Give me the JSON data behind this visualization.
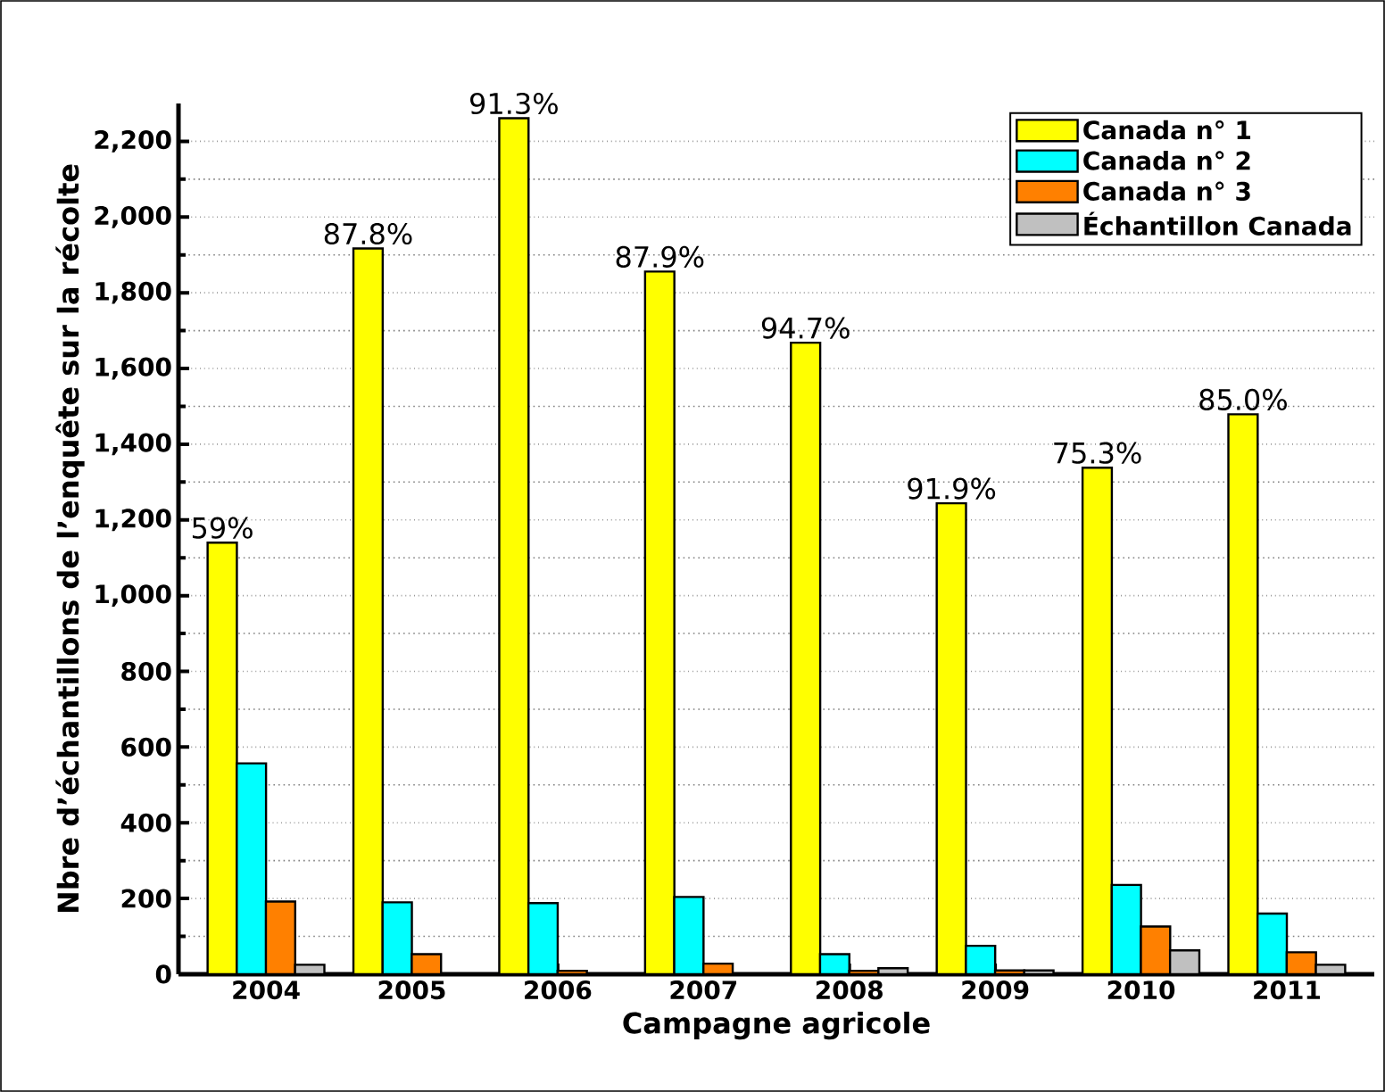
{
  "chart_data": {
    "type": "bar",
    "xlabel": "Campagne agricole",
    "ylabel": "Nbre d’échantillons de l’enquête sur la récolte",
    "categories": [
      "2004",
      "2005",
      "2006",
      "2007",
      "2008",
      "2009",
      "2010",
      "2011"
    ],
    "series": [
      {
        "name": "Canada n° 1",
        "color": "#ffff00",
        "values": [
          1140,
          1917,
          2261,
          1856,
          1668,
          1244,
          1338,
          1479
        ]
      },
      {
        "name": "Canada n° 2",
        "color": "#00ffff",
        "values": [
          557,
          190,
          188,
          204,
          53,
          75,
          236,
          160
        ]
      },
      {
        "name": "Canada n° 3",
        "color": "#ff8000",
        "values": [
          192,
          53,
          9,
          28,
          9,
          10,
          126,
          58
        ]
      },
      {
        "name": "Échantillon Canada",
        "color": "#c0c0c0",
        "values": [
          25,
          null,
          null,
          null,
          16,
          10,
          63,
          25
        ]
      }
    ],
    "ylim": [
      0,
      2300
    ],
    "yticks": [
      {
        "value": 0,
        "label": "0"
      },
      {
        "value": 200,
        "label": "200"
      },
      {
        "value": 400,
        "label": "400"
      },
      {
        "value": 600,
        "label": "600"
      },
      {
        "value": 800,
        "label": "800"
      },
      {
        "value": 1000,
        "label": "1,000"
      },
      {
        "value": 1200,
        "label": "1,200"
      },
      {
        "value": 1400,
        "label": "1,400"
      },
      {
        "value": 1600,
        "label": "1,600"
      },
      {
        "value": 1800,
        "label": "1,800"
      },
      {
        "value": 2000,
        "label": "2,000"
      },
      {
        "value": 2200,
        "label": "2,200"
      }
    ],
    "grid": "y",
    "legend": "top right",
    "annotations": [
      "59%",
      "87.8%",
      "91.3%",
      "87.9%",
      "94.7%",
      "91.9%",
      "75.3%",
      "85.0%"
    ]
  }
}
